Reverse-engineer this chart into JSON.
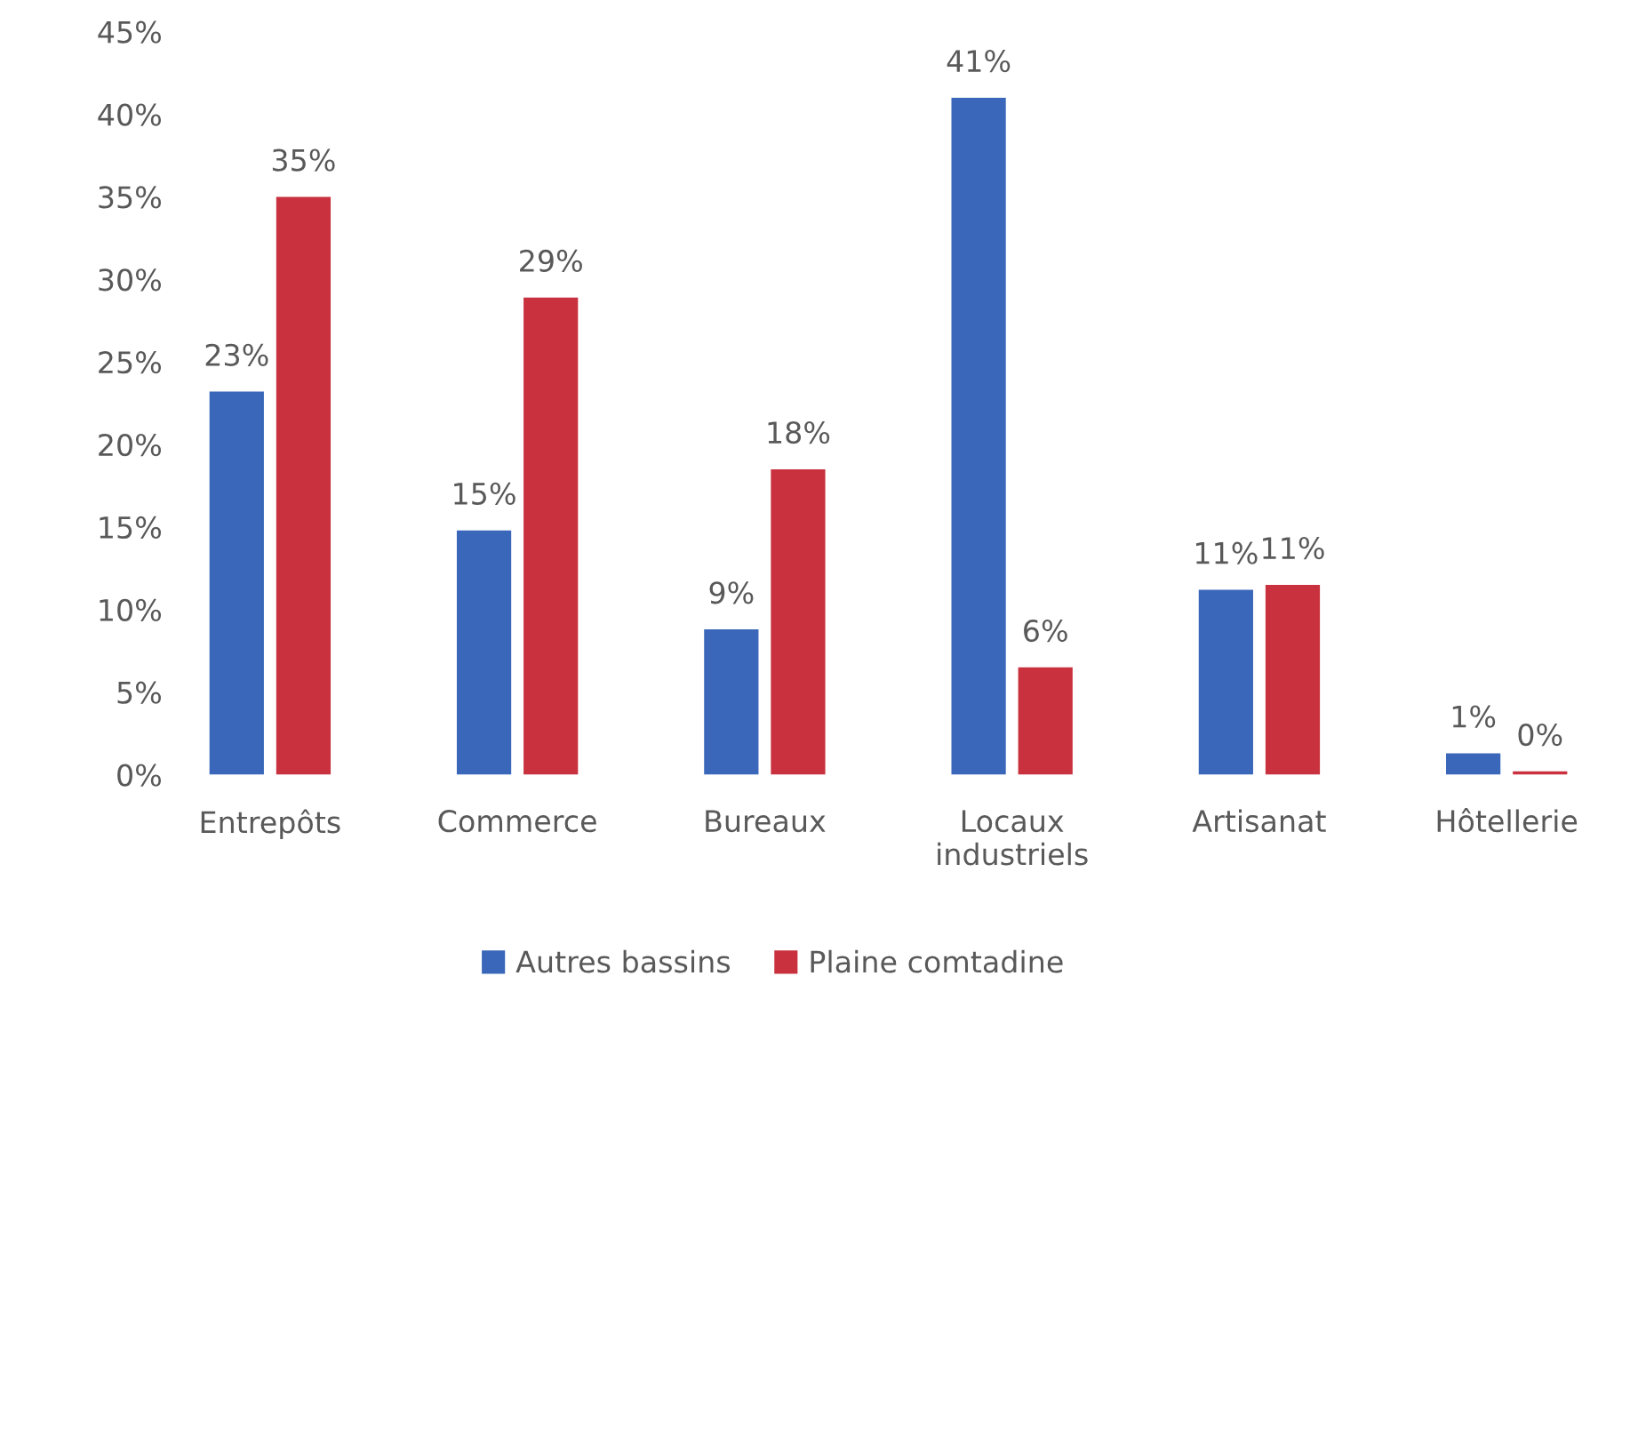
{
  "chart_data": {
    "type": "bar",
    "categories": [
      "Entrepôts",
      "Commerce",
      "Bureaux",
      "Locaux\nindustriels",
      "Artisanat",
      "Hôtellerie"
    ],
    "series": [
      {
        "name": "Autres bassins",
        "color": "#3a67b9",
        "values": [
          23.2,
          14.8,
          8.8,
          41,
          11.2,
          1.3
        ],
        "value_labels": [
          "23%",
          "15%",
          "9%",
          "41%",
          "11%",
          "1%"
        ]
      },
      {
        "name": "Plaine comtadine",
        "color": "#c8313d",
        "values": [
          35,
          28.9,
          18.5,
          6.5,
          11.5,
          0.2
        ],
        "value_labels": [
          "35%",
          "29%",
          "18%",
          "6%",
          "11%",
          "0%"
        ]
      }
    ],
    "ylim": [
      0,
      45
    ],
    "yticks": [
      {
        "value": 0,
        "label": "0%"
      },
      {
        "value": 5,
        "label": "5%"
      },
      {
        "value": 10,
        "label": "10%"
      },
      {
        "value": 15,
        "label": "15%"
      },
      {
        "value": 20,
        "label": "20%"
      },
      {
        "value": 25,
        "label": "25%"
      },
      {
        "value": 30,
        "label": "30%"
      },
      {
        "value": 35,
        "label": "35%"
      },
      {
        "value": 40,
        "label": "40%"
      },
      {
        "value": 45,
        "label": "45%"
      }
    ],
    "grid": false,
    "legend": "bottom"
  }
}
